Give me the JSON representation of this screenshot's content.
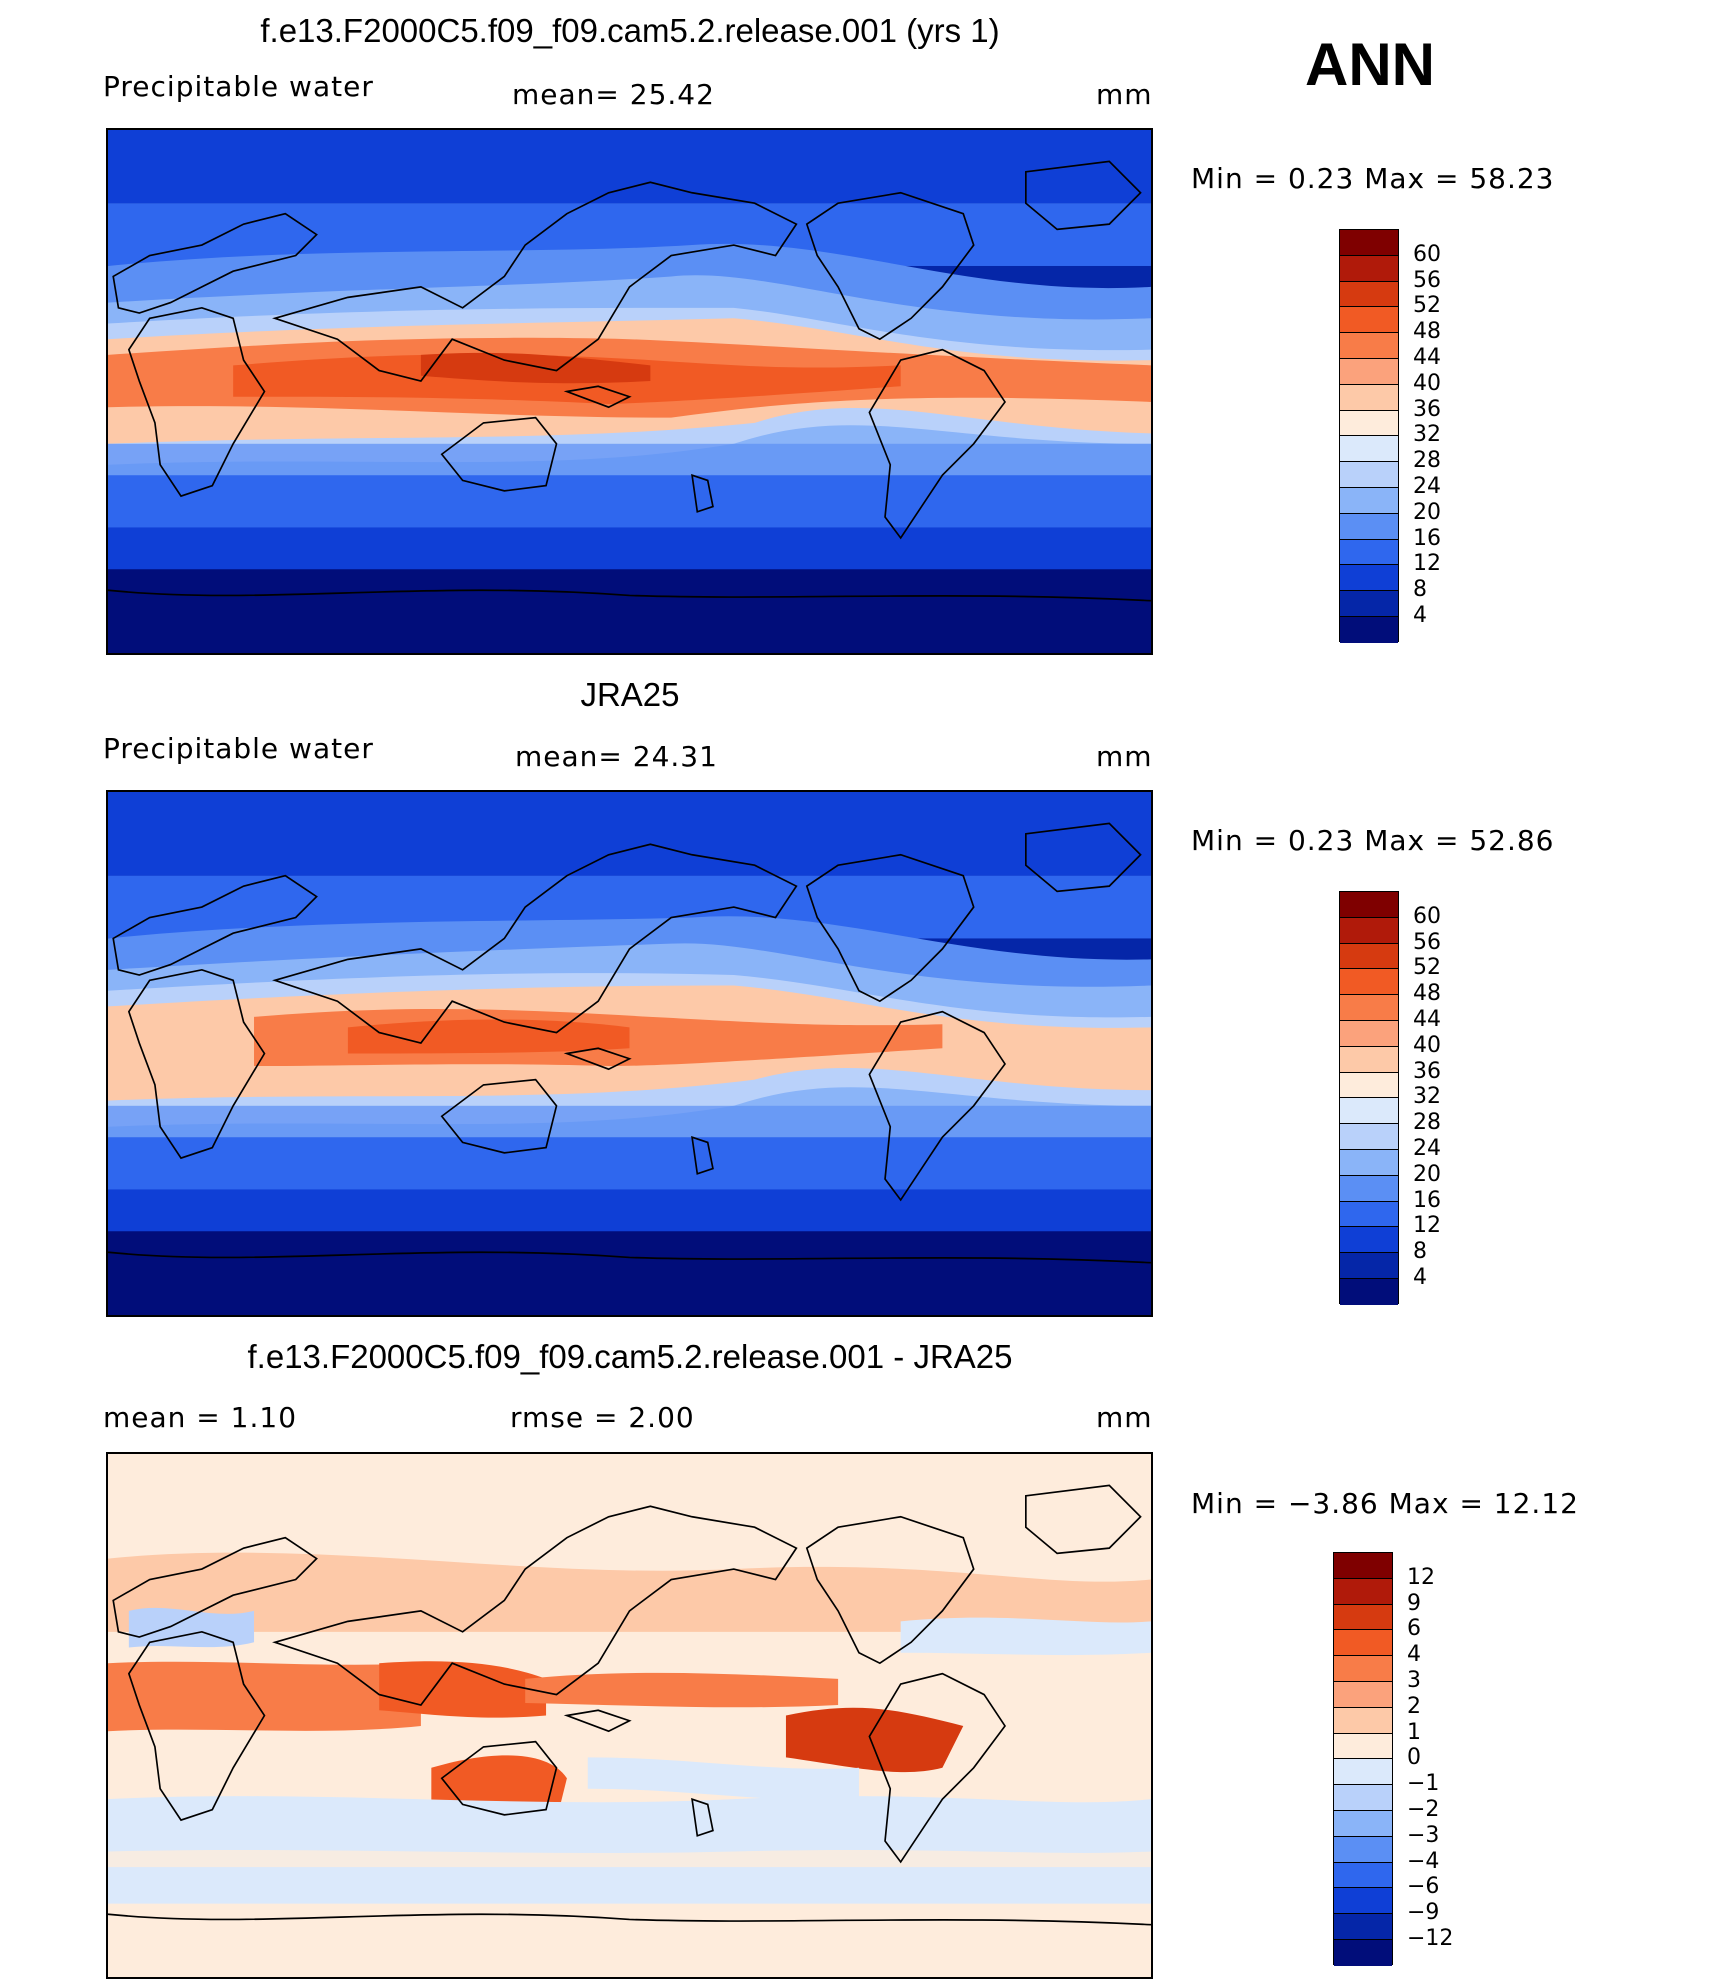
{
  "season": "ANN",
  "unit": "mm",
  "panels": [
    {
      "id": "model",
      "title": "f.e13.F2000C5.f09_f09.cam5.2.release.001 (yrs 1)",
      "left_label": "Precipitable  water",
      "center_label": "mean=   25.42",
      "unit_label": "mm",
      "minmax_label": "Min  =     0.23  Max  =    58.23",
      "levels": [
        "60",
        "56",
        "52",
        "48",
        "44",
        "40",
        "36",
        "32",
        "28",
        "24",
        "20",
        "16",
        "12",
        "8",
        "4"
      ],
      "colors": [
        "#7f0000",
        "#b01a0a",
        "#d63a10",
        "#f15a24",
        "#f87c48",
        "#fba27c",
        "#fdc9a8",
        "#feecdc",
        "#dbe9fb",
        "#b9d1fa",
        "#8ab4f8",
        "#5b8ff4",
        "#2f67ee",
        "#0f3fd6",
        "#0526a8",
        "#010d7a"
      ]
    },
    {
      "id": "obs",
      "title": "JRA25",
      "left_label": "Precipitable  water",
      "center_label": "mean=   24.31",
      "unit_label": "mm",
      "minmax_label": "Min  =     0.23  Max  =    52.86",
      "levels": [
        "60",
        "56",
        "52",
        "48",
        "44",
        "40",
        "36",
        "32",
        "28",
        "24",
        "20",
        "16",
        "12",
        "8",
        "4"
      ],
      "colors": [
        "#7f0000",
        "#b01a0a",
        "#d63a10",
        "#f15a24",
        "#f87c48",
        "#fba27c",
        "#fdc9a8",
        "#feecdc",
        "#dbe9fb",
        "#b9d1fa",
        "#8ab4f8",
        "#5b8ff4",
        "#2f67ee",
        "#0f3fd6",
        "#0526a8",
        "#010d7a"
      ]
    },
    {
      "id": "diff",
      "title": "f.e13.F2000C5.f09_f09.cam5.2.release.001 - JRA25",
      "left_label": "mean  =     1.10",
      "center_label": "rmse  =     2.00",
      "unit_label": "mm",
      "minmax_label": "Min  =   −3.86  Max  =    12.12",
      "levels": [
        "12",
        "9",
        "6",
        "4",
        "3",
        "2",
        "1",
        "0",
        "−1",
        "−2",
        "−3",
        "−4",
        "−6",
        "−9",
        "−12"
      ],
      "colors": [
        "#7f0000",
        "#b01a0a",
        "#d63a10",
        "#f15a24",
        "#f87c48",
        "#fba27c",
        "#fdc9a8",
        "#feecdc",
        "#dbe9fb",
        "#b9d1fa",
        "#8ab4f8",
        "#5b8ff4",
        "#2f67ee",
        "#0f3fd6",
        "#0526a8",
        "#010d7a"
      ]
    }
  ]
}
